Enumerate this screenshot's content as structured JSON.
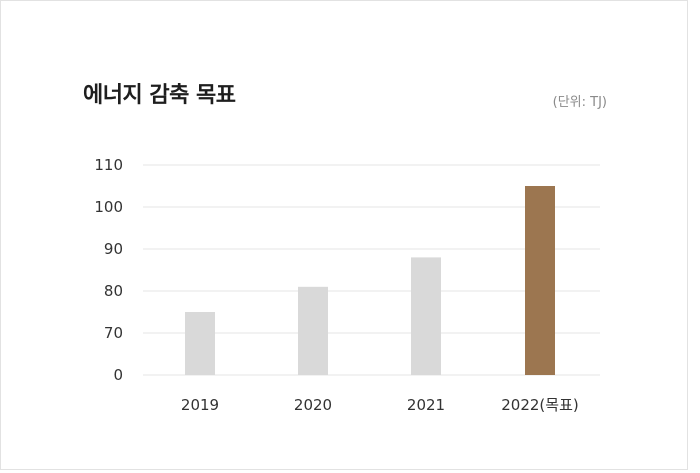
{
  "chart_data": {
    "type": "bar",
    "title": "에너지 감축 목표",
    "unit_label": "(단위: TJ)",
    "categories": [
      "2019",
      "2020",
      "2021",
      "2022(목표)"
    ],
    "values": [
      75,
      81,
      88,
      105
    ],
    "y_ticks": [
      "0",
      "70",
      "80",
      "90",
      "100",
      "110"
    ],
    "y_tick_values": [
      60,
      70,
      80,
      90,
      100,
      110
    ],
    "ylim": [
      60,
      110
    ],
    "axis_break": true,
    "grid": true,
    "bar_colors": [
      "#d9d9d9",
      "#d9d9d9",
      "#d9d9d9",
      "#9c7650"
    ],
    "grid_color": "#e6e6e6"
  }
}
